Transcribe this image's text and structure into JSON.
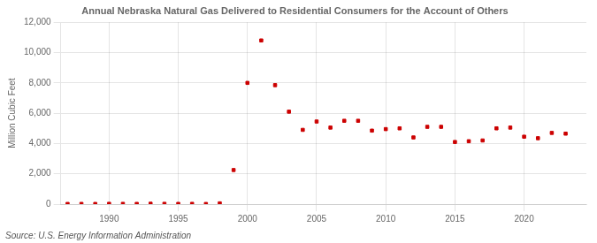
{
  "chart_data": {
    "type": "scatter",
    "title": "Annual Nebraska Natural Gas Delivered to Residential Consumers for the Account of Others",
    "ylabel": "Million Cubic Feet",
    "annotations": [
      "Source: U.S. Energy Information Administration"
    ],
    "x": [
      1987,
      1988,
      1989,
      1990,
      1991,
      1992,
      1993,
      1994,
      1995,
      1996,
      1997,
      1998,
      1999,
      2000,
      2001,
      2002,
      2003,
      2004,
      2005,
      2006,
      2007,
      2008,
      2009,
      2010,
      2011,
      2012,
      2013,
      2014,
      2015,
      2016,
      2017,
      2018,
      2019,
      2020,
      2021,
      2022,
      2023
    ],
    "values": [
      10,
      15,
      12,
      20,
      18,
      15,
      25,
      20,
      15,
      18,
      10,
      50,
      2250,
      8000,
      10800,
      7850,
      6100,
      4900,
      5450,
      5050,
      5500,
      5500,
      4850,
      4950,
      5000,
      4400,
      5100,
      5100,
      4100,
      4150,
      4200,
      5000,
      5050,
      4450,
      4350,
      4700,
      4650
    ],
    "color": "#cc0000",
    "marker": "square",
    "xlim": [
      1986.5,
      2024.5
    ],
    "xticks": [
      1990,
      1995,
      2000,
      2005,
      2010,
      2015,
      2020
    ],
    "ylim": [
      0,
      12000
    ],
    "yticks": [
      0,
      {
        "value": 2000,
        "label": "2,000"
      },
      {
        "value": 4000,
        "label": "4,000"
      },
      {
        "value": 6000,
        "label": "6,000"
      },
      {
        "value": 8000,
        "label": "8,000"
      },
      {
        "value": 10000,
        "label": "10,000"
      },
      {
        "value": 12000,
        "label": "12,000"
      }
    ],
    "grid": true
  }
}
